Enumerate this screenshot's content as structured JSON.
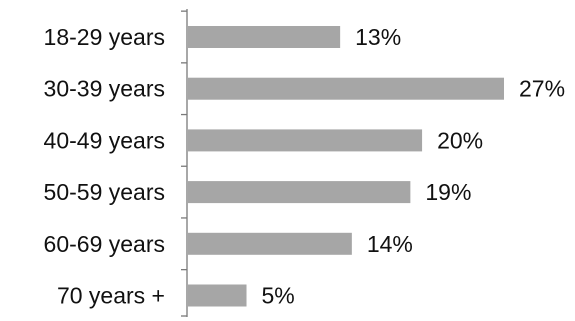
{
  "chart_data": {
    "type": "bar",
    "orientation": "horizontal",
    "categories": [
      "18-29 years",
      "30-39 years",
      "40-49 years",
      "50-59 years",
      "60-69 years",
      "70 years +"
    ],
    "values": [
      13,
      27,
      20,
      19,
      14,
      5
    ],
    "value_labels": [
      "13%",
      "27%",
      "20%",
      "19%",
      "14%",
      "5%"
    ],
    "title": "",
    "xlabel": "",
    "ylabel": "",
    "xlim": [
      0,
      27
    ],
    "grid": false,
    "legend": "none",
    "bar_color": "#a6a6a6"
  }
}
